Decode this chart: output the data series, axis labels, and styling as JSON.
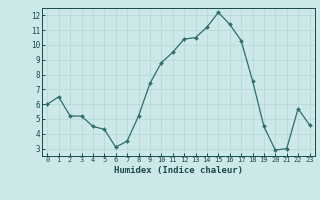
{
  "x": [
    0,
    1,
    2,
    3,
    4,
    5,
    6,
    7,
    8,
    9,
    10,
    11,
    12,
    13,
    14,
    15,
    16,
    17,
    18,
    19,
    20,
    21,
    22,
    23
  ],
  "y": [
    6.0,
    6.5,
    5.2,
    5.2,
    4.5,
    4.3,
    3.1,
    3.5,
    5.2,
    7.4,
    8.8,
    9.5,
    10.4,
    10.5,
    11.2,
    12.2,
    11.4,
    10.3,
    7.6,
    4.5,
    2.9,
    3.0,
    5.7,
    4.6
  ],
  "xlabel": "Humidex (Indice chaleur)",
  "ylim": [
    2.5,
    12.5
  ],
  "xlim": [
    -0.5,
    23.5
  ],
  "yticks": [
    3,
    4,
    5,
    6,
    7,
    8,
    9,
    10,
    11,
    12
  ],
  "xticks": [
    0,
    1,
    2,
    3,
    4,
    5,
    6,
    7,
    8,
    9,
    10,
    11,
    12,
    13,
    14,
    15,
    16,
    17,
    18,
    19,
    20,
    21,
    22,
    23
  ],
  "line_color": "#2d6e6e",
  "marker_color": "#2d6e6e",
  "bg_color": "#cde8e8",
  "grid_color": "#b8d8d8",
  "axis_label_color": "#1a4a4a",
  "tick_label_color": "#1a4a4a"
}
